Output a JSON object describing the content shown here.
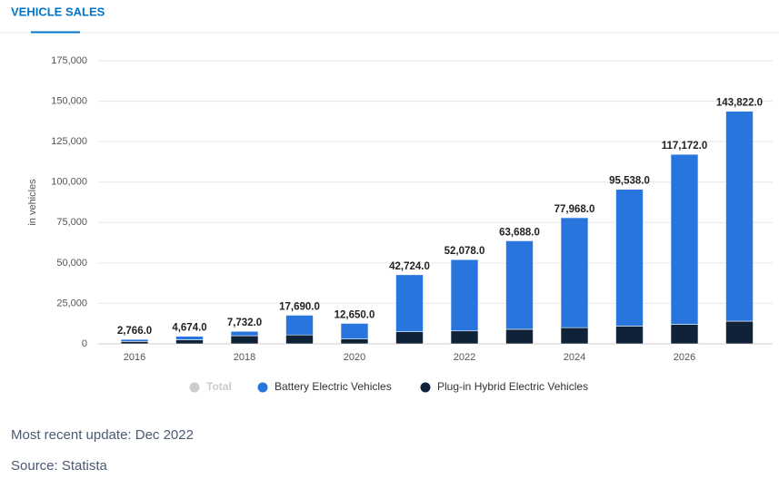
{
  "header": {
    "tab": "VEHICLE SALES"
  },
  "chart_data": {
    "type": "bar",
    "stacked": true,
    "y_label": "in vehicles",
    "categories": [
      "2016",
      null,
      "2018",
      null,
      "2020",
      null,
      "2022",
      null,
      "2024",
      null,
      "2026",
      null
    ],
    "series": [
      {
        "name": "Total",
        "color": "#cccccc",
        "visible": false,
        "values": [
          2766,
          4674,
          7732,
          17690,
          12650,
          42724,
          52078,
          63688,
          77968,
          95538,
          117172,
          143822
        ],
        "value_labels": [
          "2,766.0",
          "4,674.0",
          "7,732.0",
          "17,690.0",
          "12,650.0",
          "42,724.0",
          "52,078.0",
          "63,688.0",
          "77,968.0",
          "95,538.0",
          "117,172.0",
          "143,822.0"
        ]
      },
      {
        "name": "Battery Electric Vehicles",
        "color": "#2876dd",
        "visible": true,
        "values": [
          1266,
          2174,
          2732,
          12190,
          9650,
          35224,
          44078,
          54688,
          67968,
          84538,
          105172,
          129822
        ]
      },
      {
        "name": "Plug-in Hybrid Electric Vehicles",
        "color": "#0f2238",
        "visible": true,
        "values": [
          1500,
          2500,
          5000,
          5500,
          3000,
          7500,
          8000,
          9000,
          10000,
          11000,
          12000,
          14000
        ]
      }
    ],
    "ylim": [
      0,
      175000
    ],
    "yticks": [
      0,
      {
        "value": 25000,
        "label": "25,000"
      },
      {
        "value": 50000,
        "label": "50,000"
      },
      {
        "value": 75000,
        "label": "75,000"
      },
      {
        "value": 100000,
        "label": "100,000"
      },
      {
        "value": 125000,
        "label": "125,000"
      },
      {
        "value": 150000,
        "label": "150,000"
      },
      {
        "value": 175000,
        "label": "175,000"
      }
    ],
    "grid": true
  },
  "footer": {
    "update": "Most recent update: Dec 2022",
    "source": "Source: Statista"
  }
}
